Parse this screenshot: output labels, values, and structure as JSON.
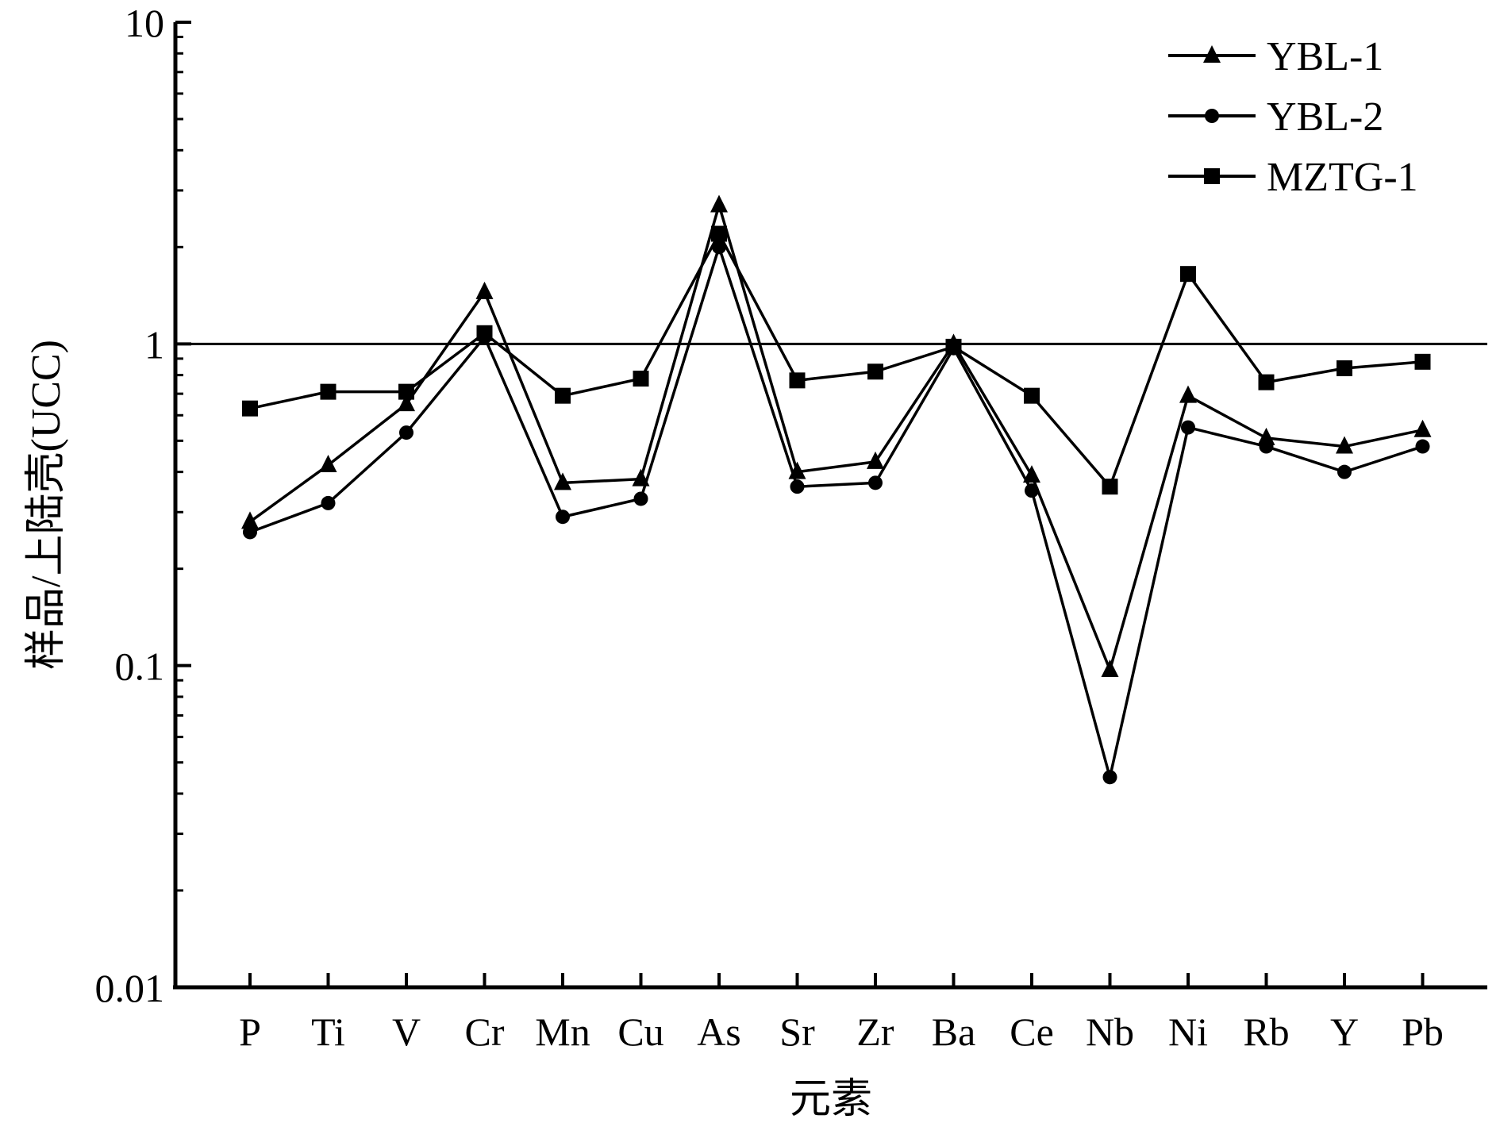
{
  "chart_data": {
    "type": "line",
    "title": "",
    "xlabel": "元素",
    "ylabel": "样品/上陆壳(UCC)",
    "yscale": "log",
    "ylim": [
      0.01,
      10
    ],
    "yticks": [
      {
        "value": 10,
        "label": "10"
      },
      {
        "value": 1,
        "label": "1"
      },
      {
        "value": 0.1,
        "label": "0.1"
      },
      {
        "value": 0.01,
        "label": "0.01"
      }
    ],
    "reference_line": 1,
    "grid": false,
    "legend_position": "top-right",
    "categories": [
      "P",
      "Ti",
      "V",
      "Cr",
      "Mn",
      "Cu",
      "As",
      "Sr",
      "Zr",
      "Ba",
      "Ce",
      "Nb",
      "Ni",
      "Rb",
      "Y",
      "Pb"
    ],
    "series": [
      {
        "name": "YBL-1",
        "marker": "triangle",
        "values": [
          0.28,
          0.42,
          0.65,
          1.45,
          0.37,
          0.38,
          2.7,
          0.4,
          0.43,
          1.0,
          0.39,
          0.097,
          0.69,
          0.51,
          0.48,
          0.54
        ]
      },
      {
        "name": "YBL-2",
        "marker": "circle",
        "values": [
          0.26,
          0.32,
          0.53,
          1.05,
          0.29,
          0.33,
          2.0,
          0.36,
          0.37,
          0.97,
          0.35,
          0.045,
          0.55,
          0.48,
          0.4,
          0.48
        ]
      },
      {
        "name": "MZTG-1",
        "marker": "square",
        "values": [
          0.63,
          0.71,
          0.71,
          1.08,
          0.69,
          0.78,
          2.2,
          0.77,
          0.82,
          0.98,
          0.69,
          0.36,
          1.65,
          0.76,
          0.84,
          0.88
        ]
      }
    ],
    "colors": {
      "line": "#000000",
      "background": "#ffffff"
    }
  }
}
